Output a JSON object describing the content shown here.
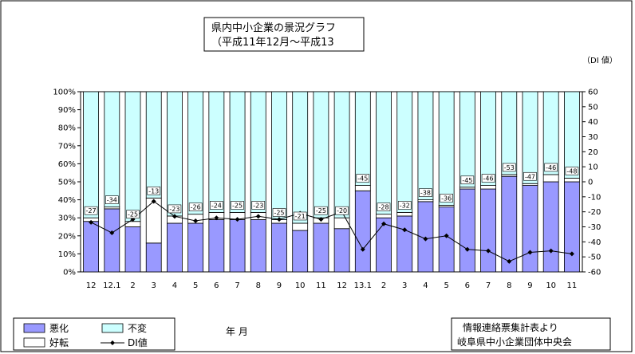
{
  "chart_data": {
    "type": "bar",
    "stacked": true,
    "title": [
      "県内中小企業の景況グラフ",
      "（平成11年12月～平成13"
    ],
    "y_unit_label": "（DI 値）",
    "x_caption": "年 月",
    "categories": [
      "12",
      "12.1",
      "2",
      "3",
      "4",
      "5",
      "6",
      "7",
      "8",
      "9",
      "10",
      "11",
      "12",
      "13.1",
      "2",
      "3",
      "4",
      "5",
      "6",
      "7",
      "8",
      "9",
      "10",
      "11"
    ],
    "left_axis": {
      "min": 0,
      "max": 100,
      "step": 10,
      "suffix": "%"
    },
    "right_axis": {
      "min": -60,
      "max": 60,
      "step": 10
    },
    "series": [
      {
        "name": "悪化",
        "color": "#9999ff",
        "values": [
          28,
          35,
          25,
          16,
          27,
          27,
          29,
          29,
          29,
          27,
          23,
          27,
          24,
          45,
          30,
          31,
          39,
          36,
          46,
          46,
          53,
          48,
          50,
          50
        ]
      },
      {
        "name": "好転",
        "color": "#ffffff",
        "values": [
          2,
          1,
          3,
          25,
          4,
          5,
          4,
          4,
          4,
          2,
          4,
          3,
          6,
          3,
          2,
          2,
          1,
          1,
          1,
          2,
          1,
          1,
          4,
          2
        ]
      }
    ],
    "bar_total": [
      30,
      36,
      28,
      41,
      31,
      32,
      33,
      33,
      33,
      29,
      27,
      30,
      30,
      48,
      32,
      33,
      40,
      37,
      47,
      48,
      54,
      49,
      54,
      52
    ],
    "bar_other": {
      "name": "不変",
      "color": "#ccffff"
    },
    "di_series": {
      "name": "DI値",
      "values": [
        -27,
        -34,
        -25,
        -13,
        -23,
        -26,
        -24,
        -25,
        -23,
        -25,
        -21,
        -25,
        -20,
        -45,
        -28,
        -32,
        -38,
        -36,
        -45,
        -46,
        -53,
        -47,
        -46,
        -48
      ]
    },
    "legend": [
      "悪化",
      "不変",
      "好転",
      "DI値"
    ],
    "source": [
      "情報連絡票集計表より",
      "岐阜県中小企業団体中央会"
    ]
  }
}
